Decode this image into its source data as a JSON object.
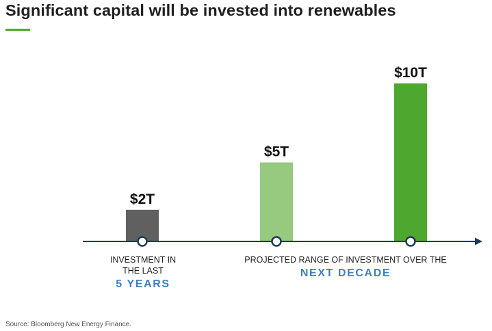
{
  "title": "Significant capital will be invested into renewables",
  "source": "Source: Bloomberg New Energy Finance.",
  "captions": {
    "past_line1": "INVESTMENT IN",
    "past_line2": "THE LAST",
    "past_emph": "5 YEARS",
    "future_line": "PROJECTED RANGE OF  INVESTMENT OVER THE",
    "future_emph": "NEXT DECADE"
  },
  "colors": {
    "accent": "#4ea72e",
    "axis": "#1f3a5a",
    "emphasis": "#3f7fbf"
  },
  "chart_data": {
    "type": "bar",
    "categories": [
      "Last 5 years",
      "Next decade (low)",
      "Next decade (high)"
    ],
    "values": [
      2,
      5,
      10
    ],
    "labels": [
      "$2T",
      "$5T",
      "$10T"
    ],
    "unit": "trillion USD",
    "colors": [
      "#606060",
      "#97c97f",
      "#4ea72e"
    ],
    "ylim": [
      0,
      10
    ]
  }
}
